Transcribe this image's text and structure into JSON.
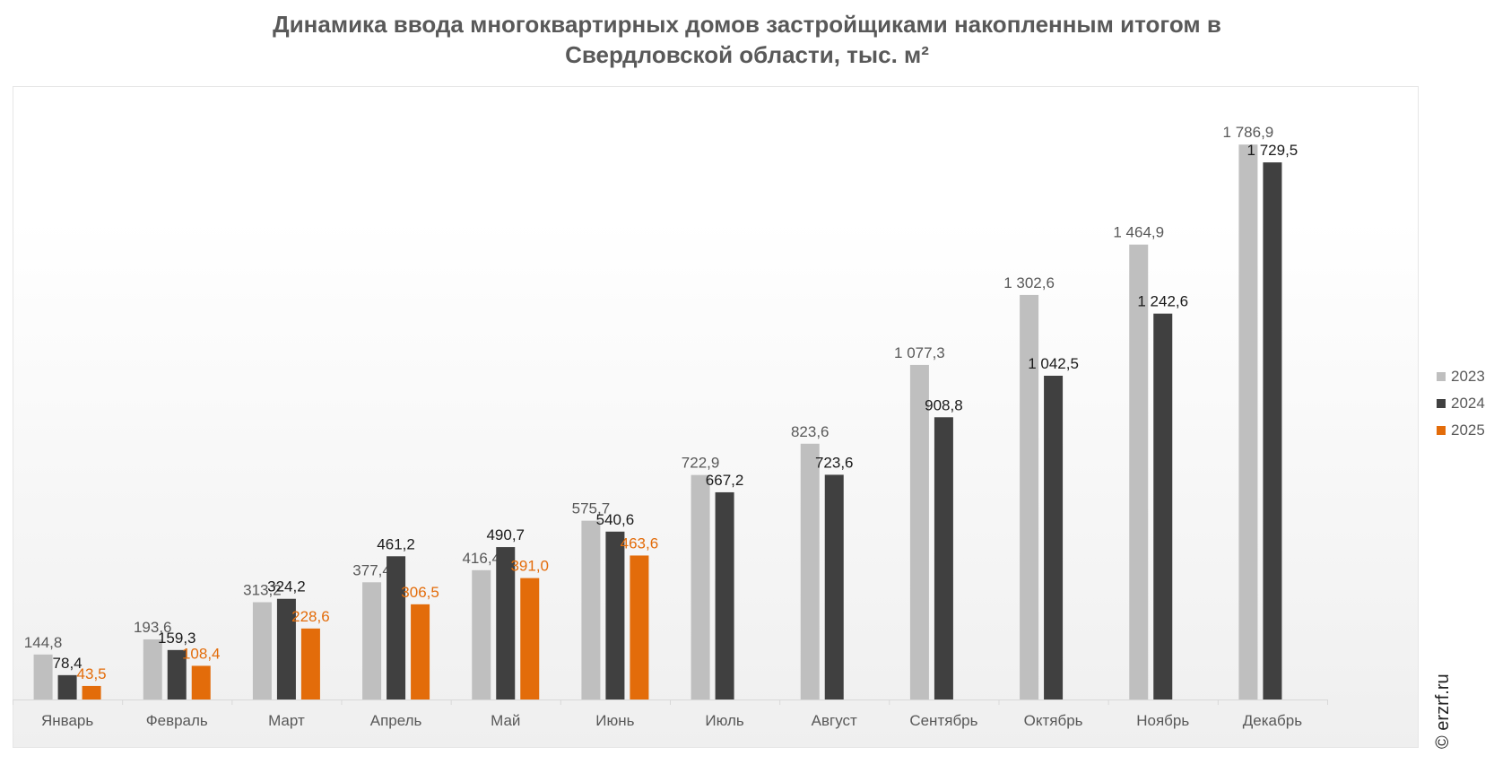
{
  "chart_data": {
    "type": "bar",
    "title_lines": [
      "Динамика ввода многоквартирных домов застройщиками накопленным итогом в",
      "Свердловской области, тыс. м²"
    ],
    "categories": [
      "Январь",
      "Февраль",
      "Март",
      "Апрель",
      "Май",
      "Июнь",
      "Июль",
      "Август",
      "Сентябрь",
      "Октябрь",
      "Ноябрь",
      "Декабрь"
    ],
    "series": [
      {
        "name": "2023",
        "color": "#bfbfbf",
        "label_color": "#595959",
        "values": [
          144.8,
          193.6,
          313.2,
          377.4,
          416.4,
          575.7,
          722.9,
          823.6,
          1077.3,
          1302.6,
          1464.9,
          1786.9
        ],
        "labels": [
          "144,8",
          "193,6",
          "313,2",
          "377,4",
          "416,4",
          "575,7",
          "722,9",
          "823,6",
          "1 077,3",
          "1 302,6",
          "1 464,9",
          "1 786,9"
        ]
      },
      {
        "name": "2024",
        "color": "#404040",
        "label_color": "#1a1a1a",
        "values": [
          78.4,
          159.3,
          324.2,
          461.2,
          490.7,
          540.6,
          667.2,
          723.6,
          908.8,
          1042.5,
          1242.6,
          1729.5
        ],
        "labels": [
          "78,4",
          "159,3",
          "324,2",
          "461,2",
          "490,7",
          "540,6",
          "667,2",
          "723,6",
          "908,8",
          "1 042,5",
          "1 242,6",
          "1 729,5"
        ]
      },
      {
        "name": "2025",
        "color": "#e36c0a",
        "label_color": "#e36c0a",
        "values": [
          43.5,
          108.4,
          228.6,
          306.5,
          391.0,
          463.6,
          null,
          null,
          null,
          null,
          null,
          null
        ],
        "labels": [
          "43,5",
          "108,4",
          "228,6",
          "306,5",
          "391,0",
          "463,6",
          "",
          "",
          "",
          "",
          "",
          ""
        ]
      }
    ],
    "ylim": [
      0,
      1900
    ],
    "grid": false,
    "legend_position": "right"
  },
  "watermark": "© erzrf.ru"
}
